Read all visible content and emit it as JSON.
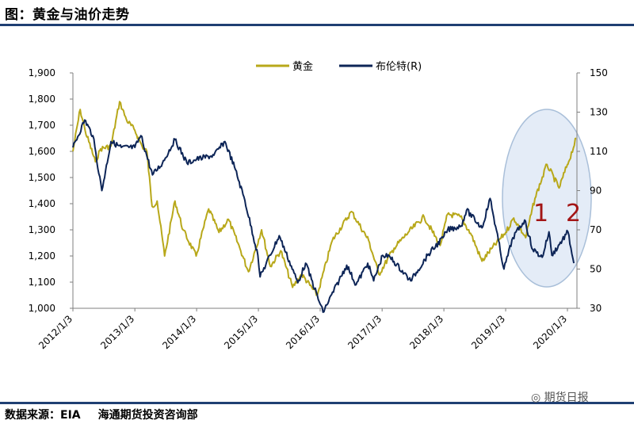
{
  "title": "图：黄金与油价走势",
  "source": {
    "prefix": "数据来源：EIA",
    "org": "海通期货投资咨询部"
  },
  "watermark": "期货日报",
  "colors": {
    "gold": "#b8a81a",
    "brent": "#0d2557",
    "highlight_fill": "#dbe6f4",
    "highlight_stroke": "#a9bfd9",
    "annotation": "#a31515"
  },
  "annotations": [
    "1",
    "2"
  ],
  "chart_data": {
    "type": "line",
    "title": "",
    "xlabel": "",
    "x_ticks": [
      "2012/1/3",
      "2013/1/3",
      "2014/1/3",
      "2015/1/3",
      "2016/1/3",
      "2017/1/3",
      "2018/1/3",
      "2019/1/3",
      "2020/1/3"
    ],
    "y_left": {
      "min": 1000,
      "max": 1900,
      "ticks": [
        "1,000",
        "1,100",
        "1,200",
        "1,300",
        "1,400",
        "1,500",
        "1,600",
        "1,700",
        "1,800",
        "1,900"
      ]
    },
    "y_right": {
      "min": 30,
      "max": 150,
      "ticks": [
        "30",
        "50",
        "70",
        "90",
        "110",
        "130",
        "150"
      ]
    },
    "legend_position": "top-center",
    "grid": false,
    "series": [
      {
        "name": "黄金",
        "axis": "left",
        "color": "#b8a81a",
        "points": [
          [
            "2012-01-03",
            1600
          ],
          [
            "2012-02-15",
            1760
          ],
          [
            "2012-03-15",
            1680
          ],
          [
            "2012-05-15",
            1560
          ],
          [
            "2012-06-15",
            1610
          ],
          [
            "2012-08-15",
            1620
          ],
          [
            "2012-10-05",
            1790
          ],
          [
            "2012-11-15",
            1720
          ],
          [
            "2013-01-03",
            1680
          ],
          [
            "2013-02-15",
            1620
          ],
          [
            "2013-03-15",
            1600
          ],
          [
            "2013-04-15",
            1390
          ],
          [
            "2013-05-15",
            1410
          ],
          [
            "2013-06-28",
            1200
          ],
          [
            "2013-08-28",
            1410
          ],
          [
            "2013-10-15",
            1300
          ],
          [
            "2013-12-31",
            1200
          ],
          [
            "2014-03-15",
            1380
          ],
          [
            "2014-05-15",
            1290
          ],
          [
            "2014-07-10",
            1340
          ],
          [
            "2014-09-15",
            1230
          ],
          [
            "2014-11-05",
            1140
          ],
          [
            "2015-01-22",
            1300
          ],
          [
            "2015-03-15",
            1160
          ],
          [
            "2015-05-15",
            1220
          ],
          [
            "2015-07-24",
            1080
          ],
          [
            "2015-09-15",
            1130
          ],
          [
            "2015-12-17",
            1050
          ],
          [
            "2016-03-15",
            1260
          ],
          [
            "2016-07-06",
            1370
          ],
          [
            "2016-10-15",
            1260
          ],
          [
            "2016-12-15",
            1130
          ],
          [
            "2017-03-15",
            1230
          ],
          [
            "2017-06-06",
            1290
          ],
          [
            "2017-09-08",
            1350
          ],
          [
            "2017-12-12",
            1240
          ],
          [
            "2018-01-25",
            1360
          ],
          [
            "2018-04-11",
            1350
          ],
          [
            "2018-06-15",
            1280
          ],
          [
            "2018-08-16",
            1180
          ],
          [
            "2018-10-15",
            1230
          ],
          [
            "2019-01-03",
            1290
          ],
          [
            "2019-02-20",
            1345
          ],
          [
            "2019-05-01",
            1270
          ],
          [
            "2019-06-25",
            1420
          ],
          [
            "2019-09-04",
            1550
          ],
          [
            "2019-11-15",
            1460
          ],
          [
            "2020-01-03",
            1550
          ],
          [
            "2020-01-10",
            1560
          ],
          [
            "2020-02-24",
            1650
          ]
        ]
      },
      {
        "name": "布伦特(R)",
        "axis": "right",
        "color": "#0d2557",
        "points": [
          [
            "2012-01-03",
            112
          ],
          [
            "2012-03-13",
            126
          ],
          [
            "2012-04-30",
            118
          ],
          [
            "2012-06-22",
            90
          ],
          [
            "2012-08-15",
            115
          ],
          [
            "2012-10-15",
            112
          ],
          [
            "2013-01-03",
            112
          ],
          [
            "2013-02-08",
            118
          ],
          [
            "2013-04-17",
            98
          ],
          [
            "2013-06-15",
            104
          ],
          [
            "2013-08-28",
            116
          ],
          [
            "2013-11-07",
            104
          ],
          [
            "2014-01-03",
            106
          ],
          [
            "2014-04-15",
            108
          ],
          [
            "2014-06-19",
            115
          ],
          [
            "2014-08-15",
            102
          ],
          [
            "2014-10-15",
            85
          ],
          [
            "2014-12-31",
            57
          ],
          [
            "2015-01-13",
            46
          ],
          [
            "2015-05-06",
            67
          ],
          [
            "2015-08-24",
            43
          ],
          [
            "2015-10-09",
            53
          ],
          [
            "2016-01-20",
            28
          ],
          [
            "2016-06-08",
            52
          ],
          [
            "2016-08-02",
            42
          ],
          [
            "2016-10-10",
            53
          ],
          [
            "2016-11-14",
            44
          ],
          [
            "2017-01-06",
            57
          ],
          [
            "2017-02-20",
            56
          ],
          [
            "2017-06-21",
            44
          ],
          [
            "2017-09-29",
            57
          ],
          [
            "2017-12-29",
            66
          ],
          [
            "2018-01-25",
            70
          ],
          [
            "2018-04-15",
            72
          ],
          [
            "2018-05-17",
            80
          ],
          [
            "2018-08-16",
            71
          ],
          [
            "2018-10-03",
            86
          ],
          [
            "2018-12-24",
            50
          ],
          [
            "2019-02-15",
            66
          ],
          [
            "2019-04-25",
            75
          ],
          [
            "2019-06-12",
            60
          ],
          [
            "2019-08-07",
            56
          ],
          [
            "2019-09-16",
            69
          ],
          [
            "2019-10-03",
            57
          ],
          [
            "2020-01-06",
            69
          ],
          [
            "2020-02-10",
            53
          ]
        ]
      }
    ]
  }
}
